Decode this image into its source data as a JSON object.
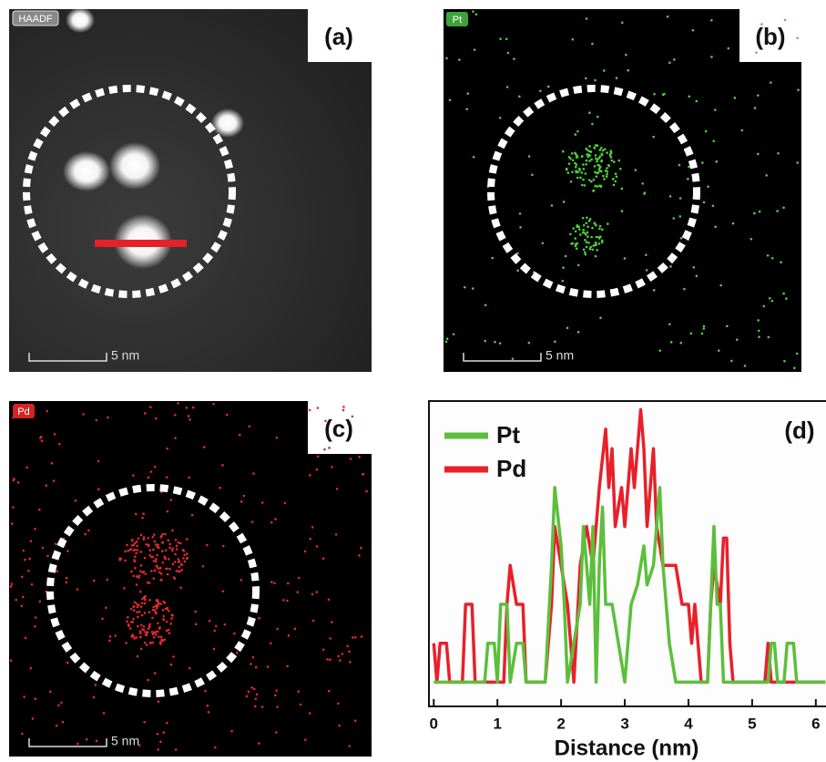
{
  "panels": [
    {
      "label": "(a)",
      "badge": "HAADF",
      "scale_bar": "5 nm"
    },
    {
      "label": "(b)",
      "badge": "Pt",
      "scale_bar": "5 nm"
    },
    {
      "label": "(c)",
      "badge": "Pd",
      "scale_bar": "5 nm"
    }
  ],
  "chart_data": {
    "type": "line",
    "label": "(d)",
    "x_label": "Distance (nm)",
    "xlim": [
      -0.09,
      6.16
    ],
    "xticks": [
      0,
      1,
      2,
      3,
      4,
      5,
      6
    ],
    "ylim": [
      -0.6,
      7.2
    ],
    "series": [
      {
        "name": "Pt",
        "color": "#5cbf3c",
        "x": [
          0,
          0.8,
          0.85,
          0.95,
          1.0,
          1.05,
          1.15,
          1.2,
          1.3,
          1.4,
          1.45,
          1.75,
          1.85,
          1.9,
          2.0,
          2.05,
          2.1,
          2.2,
          2.3,
          2.35,
          2.45,
          2.5,
          2.55,
          2.6,
          2.65,
          2.7,
          2.8,
          2.9,
          3.0,
          3.1,
          3.2,
          3.3,
          3.35,
          3.45,
          3.55,
          3.6,
          3.7,
          3.8,
          4.3,
          4.4,
          4.45,
          4.5,
          4.55,
          5.25,
          5.3,
          5.35,
          5.4,
          5.5,
          5.55,
          5.65,
          5.7,
          6.15
        ],
        "values": [
          0,
          0,
          1,
          1,
          0,
          2,
          2,
          0,
          1,
          1,
          0,
          0,
          3,
          5,
          3.5,
          2,
          0,
          1,
          2,
          4,
          2,
          4,
          0,
          3,
          4.5,
          2,
          2,
          1,
          0,
          2,
          2.5,
          3.5,
          2.5,
          3,
          5,
          3,
          1,
          0,
          0,
          4,
          2,
          2,
          0,
          0,
          1,
          1,
          0,
          0,
          1,
          1,
          0,
          0
        ]
      },
      {
        "name": "Pd",
        "color": "#e8202a",
        "x": [
          0,
          0.05,
          0.1,
          0.2,
          0.25,
          0.45,
          0.5,
          0.6,
          0.65,
          1.1,
          1.15,
          1.2,
          1.3,
          1.4,
          1.45,
          1.75,
          1.8,
          1.85,
          1.9,
          2.0,
          2.1,
          2.2,
          2.3,
          2.4,
          2.5,
          2.55,
          2.6,
          2.7,
          2.75,
          2.8,
          2.85,
          2.95,
          3.0,
          3.1,
          3.15,
          3.2,
          3.25,
          3.3,
          3.35,
          3.4,
          3.45,
          3.5,
          3.6,
          3.7,
          3.8,
          3.9,
          4.0,
          4.05,
          4.1,
          4.15,
          4.2,
          4.3,
          4.35,
          4.4,
          4.5,
          4.55,
          4.6,
          4.65,
          4.7,
          5.2,
          5.25,
          5.3,
          6.15
        ],
        "values": [
          1,
          0,
          1,
          1,
          0,
          0,
          2,
          2,
          0,
          0,
          2,
          3,
          2,
          2,
          0,
          0,
          1,
          2,
          4,
          3,
          2,
          0,
          3,
          4,
          3,
          4,
          5,
          6.5,
          5,
          6,
          4,
          5,
          4,
          6,
          5,
          6,
          7,
          6,
          4,
          5,
          6,
          4,
          3,
          3,
          3,
          2,
          2,
          1,
          2,
          1,
          0,
          0,
          2,
          3,
          2,
          3.7,
          3.7,
          1,
          0,
          0,
          1,
          0,
          0
        ]
      }
    ]
  }
}
